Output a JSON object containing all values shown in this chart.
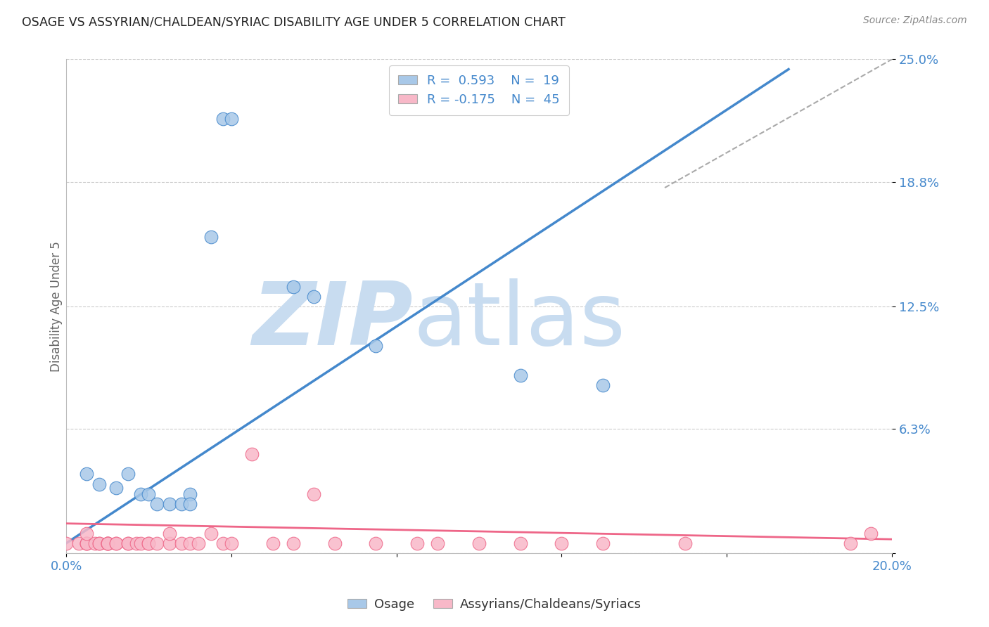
{
  "title": "OSAGE VS ASSYRIAN/CHALDEAN/SYRIAC DISABILITY AGE UNDER 5 CORRELATION CHART",
  "source": "Source: ZipAtlas.com",
  "ylabel": "Disability Age Under 5",
  "xmin": 0.0,
  "xmax": 0.2,
  "ymin": 0.0,
  "ymax": 0.25,
  "yticks": [
    0.0,
    0.063,
    0.125,
    0.188,
    0.25
  ],
  "ytick_labels": [
    "",
    "6.3%",
    "12.5%",
    "18.8%",
    "25.0%"
  ],
  "xticks": [
    0.0,
    0.04,
    0.08,
    0.12,
    0.16,
    0.2
  ],
  "xtick_labels": [
    "0.0%",
    "",
    "",
    "",
    "",
    "20.0%"
  ],
  "legend_r1": "R =  0.593",
  "legend_n1": "N =  19",
  "legend_r2": "R = -0.175",
  "legend_n2": "N =  45",
  "legend_label1": "Osage",
  "legend_label2": "Assyrians/Chaldeans/Syriacs",
  "blue_color": "#A8C8E8",
  "pink_color": "#F8B8C8",
  "blue_line_color": "#4488CC",
  "pink_line_color": "#EE6688",
  "title_color": "#222222",
  "axis_label_color": "#4488CC",
  "grid_color": "#CCCCCC",
  "watermark_color": "#C8DCF0",
  "osage_x": [
    0.005,
    0.008,
    0.012,
    0.015,
    0.018,
    0.02,
    0.022,
    0.025,
    0.028,
    0.03,
    0.03,
    0.035,
    0.038,
    0.04,
    0.055,
    0.06,
    0.075,
    0.11,
    0.13
  ],
  "osage_y": [
    0.04,
    0.035,
    0.033,
    0.04,
    0.03,
    0.03,
    0.025,
    0.025,
    0.025,
    0.03,
    0.025,
    0.16,
    0.22,
    0.22,
    0.135,
    0.13,
    0.105,
    0.09,
    0.085
  ],
  "assyrian_x": [
    0.0,
    0.003,
    0.005,
    0.005,
    0.005,
    0.005,
    0.007,
    0.008,
    0.008,
    0.01,
    0.01,
    0.01,
    0.01,
    0.012,
    0.012,
    0.015,
    0.015,
    0.017,
    0.018,
    0.02,
    0.02,
    0.022,
    0.025,
    0.025,
    0.028,
    0.03,
    0.032,
    0.035,
    0.038,
    0.04,
    0.045,
    0.05,
    0.055,
    0.06,
    0.065,
    0.075,
    0.085,
    0.09,
    0.1,
    0.11,
    0.12,
    0.13,
    0.15,
    0.19,
    0.195
  ],
  "assyrian_y": [
    0.005,
    0.005,
    0.005,
    0.005,
    0.005,
    0.01,
    0.005,
    0.005,
    0.005,
    0.005,
    0.005,
    0.005,
    0.005,
    0.005,
    0.005,
    0.005,
    0.005,
    0.005,
    0.005,
    0.005,
    0.005,
    0.005,
    0.005,
    0.01,
    0.005,
    0.005,
    0.005,
    0.01,
    0.005,
    0.005,
    0.05,
    0.005,
    0.005,
    0.03,
    0.005,
    0.005,
    0.005,
    0.005,
    0.005,
    0.005,
    0.005,
    0.005,
    0.005,
    0.005,
    0.01
  ],
  "blue_line_x": [
    0.0,
    0.175
  ],
  "blue_line_y": [
    0.005,
    0.245
  ],
  "pink_line_x": [
    0.0,
    0.2
  ],
  "pink_line_y": [
    0.015,
    0.007
  ],
  "dash_line_x": [
    0.145,
    0.2
  ],
  "dash_line_y": [
    0.185,
    0.25
  ]
}
